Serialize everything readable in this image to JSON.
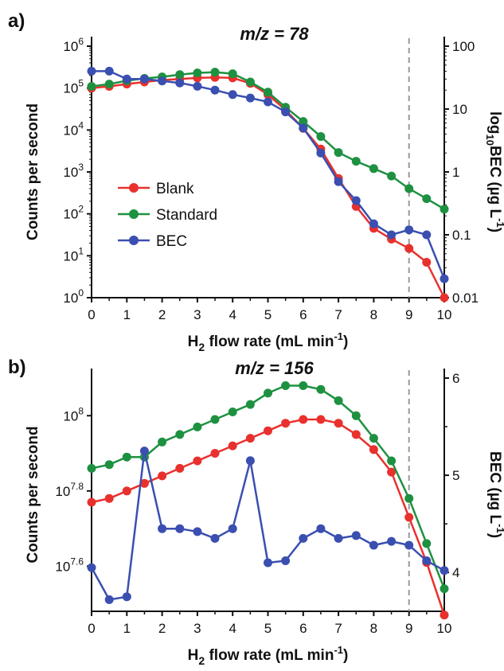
{
  "chart_data": [
    {
      "type": "line",
      "panel_label": "a)",
      "title_italic": "m/z",
      "title_rest": " = 78",
      "x_label": "H<sub>2</sub> flow rate (mL min<sup>-1</sup>)",
      "x_label_main": "H",
      "x_label_sub": "2",
      "x_label_mid": " flow rate (mL min",
      "x_label_sup": "-1",
      "x_label_end": ")",
      "y_label": "Counts per second",
      "y2_label_prefix": "log",
      "y2_label_sub": "10",
      "y2_label_main": "BEC (µg L",
      "y2_label_sup": "-1",
      "y2_label_end": ")",
      "xlim": [
        0,
        10
      ],
      "ylim": [
        1,
        1000000
      ],
      "y_scale": "log",
      "y2lim": [
        0.01,
        100
      ],
      "y2_scale": "log",
      "x_ticks": [
        "0",
        "1",
        "2",
        "3",
        "4",
        "5",
        "6",
        "7",
        "8",
        "9",
        "10"
      ],
      "y_ticks": [
        {
          "base": "10",
          "exp": "0"
        },
        {
          "base": "10",
          "exp": "1"
        },
        {
          "base": "10",
          "exp": "2"
        },
        {
          "base": "10",
          "exp": "3"
        },
        {
          "base": "10",
          "exp": "4"
        },
        {
          "base": "10",
          "exp": "5"
        },
        {
          "base": "10",
          "exp": "6"
        }
      ],
      "y2_ticks": [
        "0.01",
        "0.1",
        "1",
        "10",
        "100"
      ],
      "vline_x": 9,
      "legend_placement": "center-left",
      "x": [
        0,
        0.5,
        1,
        1.5,
        2,
        2.5,
        3,
        3.5,
        4,
        4.5,
        5,
        5.5,
        6,
        6.5,
        7,
        7.5,
        8,
        8.5,
        9,
        9.5,
        10
      ],
      "series": [
        {
          "name": "Blank",
          "color": "#e8312d",
          "axis": "left",
          "values": [
            100000,
            110000,
            125000,
            140000,
            155000,
            165000,
            175000,
            180000,
            175000,
            130000,
            70000,
            30000,
            11000,
            3500,
            700,
            150,
            45,
            25,
            15,
            7,
            1
          ]
        },
        {
          "name": "Standard",
          "color": "#1e9141",
          "axis": "left",
          "values": [
            110000,
            125000,
            150000,
            170000,
            185000,
            210000,
            230000,
            240000,
            220000,
            140000,
            80000,
            35000,
            16000,
            7000,
            2900,
            1800,
            1200,
            800,
            400,
            230,
            130
          ]
        },
        {
          "name": "BEC",
          "color": "#3a4fb0",
          "axis": "right",
          "values": [
            40,
            40,
            30,
            30,
            28,
            26,
            23,
            20,
            17,
            15,
            13,
            9,
            5,
            2,
            0.7,
            0.35,
            0.15,
            0.1,
            0.12,
            0.1,
            0.02
          ]
        }
      ]
    },
    {
      "type": "line",
      "panel_label": "b)",
      "title_italic": "m/z",
      "title_rest": " = 156",
      "x_label_main": "H",
      "x_label_sub": "2",
      "x_label_mid": " flow rate (mL min",
      "x_label_sup": "-1",
      "x_label_end": ")",
      "y_label": "Counts per second",
      "y2_label_main": "BEC (µg L",
      "y2_label_sup": "-1",
      "y2_label_end": ")",
      "xlim": [
        0,
        10
      ],
      "ylim_log10": [
        7.48,
        8.1
      ],
      "y_scale": "log",
      "y2lim": [
        3.6,
        6
      ],
      "x_ticks": [
        "0",
        "1",
        "2",
        "3",
        "4",
        "5",
        "6",
        "7",
        "8",
        "9",
        "10"
      ],
      "y_ticks": [
        {
          "base": "10",
          "exp": "7.6",
          "log": 7.6
        },
        {
          "base": "10",
          "exp": "7.8",
          "log": 7.8
        },
        {
          "base": "10",
          "exp": "8",
          "log": 8.0
        }
      ],
      "y2_ticks": [
        "4",
        "5",
        "6"
      ],
      "vline_x": 9,
      "x": [
        0,
        0.5,
        1,
        1.5,
        2,
        2.5,
        3,
        3.5,
        4,
        4.5,
        5,
        5.5,
        6,
        6.5,
        7,
        7.5,
        8,
        8.5,
        9,
        9.5,
        10
      ],
      "series": [
        {
          "name": "Blank",
          "color": "#e8312d",
          "axis": "left",
          "log_values": [
            7.77,
            7.78,
            7.8,
            7.82,
            7.84,
            7.86,
            7.88,
            7.9,
            7.92,
            7.94,
            7.96,
            7.98,
            7.99,
            7.99,
            7.98,
            7.95,
            7.91,
            7.85,
            7.73,
            7.61,
            7.47
          ]
        },
        {
          "name": "Standard",
          "color": "#1e9141",
          "axis": "left",
          "log_values": [
            7.86,
            7.87,
            7.89,
            7.89,
            7.93,
            7.95,
            7.97,
            7.99,
            8.01,
            8.03,
            8.06,
            8.08,
            8.08,
            8.07,
            8.04,
            8.0,
            7.94,
            7.88,
            7.78,
            7.66,
            7.54
          ]
        },
        {
          "name": "BEC",
          "color": "#3a4fb0",
          "axis": "right",
          "values": [
            4.05,
            3.72,
            3.75,
            5.25,
            4.45,
            4.45,
            4.42,
            4.35,
            4.45,
            5.15,
            4.1,
            4.12,
            4.35,
            4.45,
            4.35,
            4.38,
            4.28,
            4.32,
            4.28,
            4.12,
            4.02
          ]
        }
      ]
    }
  ]
}
